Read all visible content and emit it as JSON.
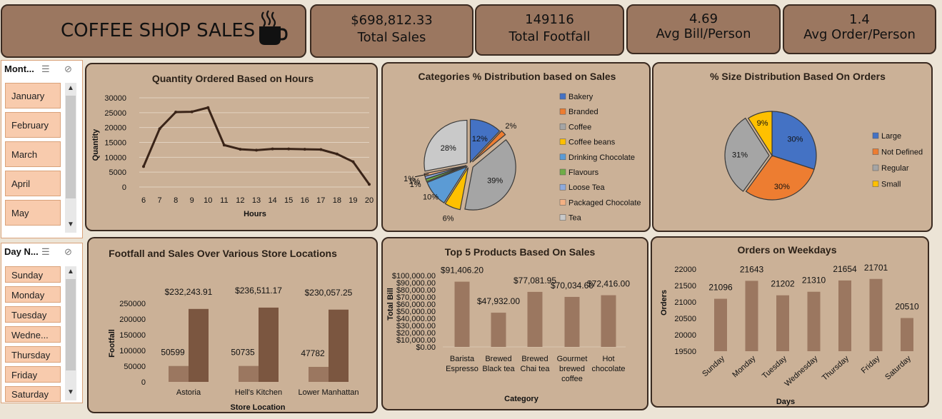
{
  "title_card": {
    "title": "COFFEE SHOP SALES",
    "icon": "coffee-cup-icon"
  },
  "kpis": [
    {
      "value": "$698,812.33",
      "label": "Total Sales"
    },
    {
      "value": "149116",
      "label": "Total Footfall"
    },
    {
      "value": "4.69",
      "label": "Avg Bill/Person"
    },
    {
      "value": "1.4",
      "label": "Avg Order/Person"
    }
  ],
  "month_slicer": {
    "header": "Mont...",
    "items": [
      "January",
      "February",
      "March",
      "April",
      "May"
    ]
  },
  "day_slicer": {
    "header": "Day N...",
    "items": [
      "Sunday",
      "Monday",
      "Tuesday",
      "Wedne...",
      "Thursday",
      "Friday",
      "Saturday"
    ]
  },
  "colors": {
    "panel": "#cbb197",
    "kpi": "#9b7760",
    "border": "#3a2a20",
    "bar_light": "#9b7760",
    "bar_dark": "#7b5640",
    "line": "#3a2418",
    "slicer_item": "#f8cbad"
  },
  "chart_data": [
    {
      "type": "line",
      "title": "Quantity Ordered Based on Hours",
      "xlabel": "Hours",
      "ylabel": "Quantity",
      "x": [
        "6",
        "7",
        "8",
        "9",
        "10",
        "11",
        "12",
        "13",
        "14",
        "15",
        "16",
        "17",
        "18",
        "19",
        "20"
      ],
      "values": [
        6900,
        19600,
        25200,
        25300,
        26700,
        14100,
        12700,
        12400,
        12800,
        12800,
        12700,
        12600,
        11100,
        8500,
        900
      ],
      "yticks": [
        "30000",
        "25000",
        "20000",
        "15000",
        "10000",
        "5000",
        "0"
      ],
      "ylim": [
        0,
        30000
      ],
      "grid": true
    },
    {
      "type": "pie",
      "title": "Categories % Distribution based on Sales",
      "categories": [
        "Bakery",
        "Branded",
        "Coffee",
        "Coffee beans",
        "Drinking Chocolate",
        "Flavours",
        "Loose Tea",
        "Packaged Chocolate",
        "Tea"
      ],
      "values": [
        12,
        2,
        39,
        6,
        10,
        1,
        1,
        1,
        28
      ],
      "labels": [
        "12%",
        "2%",
        "39%",
        "6%",
        "10%",
        "1%",
        "1%",
        "1%",
        "28%"
      ],
      "colors": [
        "#4472c4",
        "#ed7d31",
        "#a5a5a5",
        "#ffc000",
        "#5b9bd5",
        "#70ad47",
        "#8faadc",
        "#f4b183",
        "#c9c9c9"
      ],
      "legend": "right"
    },
    {
      "type": "pie",
      "title": "% Size Distribution Based On Orders",
      "categories": [
        "Large",
        "Not Defined",
        "Regular",
        "Small"
      ],
      "values": [
        30,
        30,
        31,
        9
      ],
      "labels": [
        "30%",
        "30%",
        "31%",
        "9%"
      ],
      "colors": [
        "#4472c4",
        "#ed7d31",
        "#a5a5a5",
        "#ffc000"
      ],
      "legend": "right"
    },
    {
      "type": "bar",
      "title": "Footfall and Sales Over Various Store Locations",
      "xlabel": "Store Location",
      "ylabel": "Footfall",
      "categories": [
        "Astoria",
        "Hell's Kitchen",
        "Lower Manhattan"
      ],
      "series": [
        {
          "values": [
            50599,
            50735,
            47782
          ],
          "labels": [
            "50599",
            "50735",
            "47782"
          ]
        },
        {
          "values": [
            232243.91,
            236511.17,
            230057.25
          ],
          "labels": [
            "$232,243.91",
            "$236,511.17",
            "$230,057.25"
          ]
        }
      ],
      "yticks": [
        "250000",
        "200000",
        "150000",
        "100000",
        "50000",
        "0"
      ],
      "ylim": [
        0,
        250000
      ]
    },
    {
      "type": "bar",
      "title": "Top 5 Products Based On Sales",
      "xlabel": "Category",
      "ylabel": "Total Bill",
      "categories": [
        [
          "Barista",
          "Espresso"
        ],
        [
          "Brewed",
          "Black tea"
        ],
        [
          "Brewed",
          "Chai tea"
        ],
        [
          "Gourmet",
          "brewed",
          "coffee"
        ],
        [
          "Hot",
          "chocolate"
        ]
      ],
      "values": [
        91406.2,
        47932.0,
        77081.95,
        70034.6,
        72416.0
      ],
      "labels": [
        "$91,406.20",
        "$47,932.00",
        "$77,081.95",
        "$70,034.60",
        "$72,416.00"
      ],
      "yticks": [
        "$100,000.00",
        "$90,000.00",
        "$80,000.00",
        "$70,000.00",
        "$60,000.00",
        "$50,000.00",
        "$40,000.00",
        "$30,000.00",
        "$20,000.00",
        "$10,000.00",
        "$0.00"
      ],
      "ylim": [
        0,
        100000
      ]
    },
    {
      "type": "bar",
      "title": "Orders on Weekdays",
      "xlabel": "Days",
      "ylabel": "Orders",
      "categories": [
        "Sunday",
        "Monday",
        "Tuesday",
        "Wednesday",
        "Thursday",
        "Friday",
        "Saturday"
      ],
      "values": [
        21096,
        21643,
        21202,
        21310,
        21654,
        21701,
        20510
      ],
      "labels": [
        "21096",
        "21643",
        "21202",
        "21310",
        "21654",
        "21701",
        "20510"
      ],
      "yticks": [
        "22000",
        "21500",
        "21000",
        "20500",
        "20000",
        "19500"
      ],
      "ylim": [
        19500,
        22000
      ]
    }
  ]
}
